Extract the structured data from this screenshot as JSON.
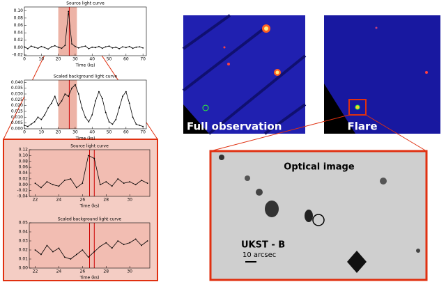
{
  "chart_data": [
    {
      "type": "line",
      "title": "Source light curve",
      "xlabel": "Time (ks)",
      "color": "#000000",
      "x": [
        0,
        2,
        4,
        6,
        8,
        10,
        12,
        14,
        16,
        18,
        20,
        22,
        24,
        26,
        28,
        30,
        32,
        34,
        36,
        38,
        40,
        42,
        44,
        46,
        48,
        50,
        52,
        54,
        56,
        58,
        60,
        62,
        64,
        66,
        68,
        70
      ],
      "values": [
        0.002,
        -0.003,
        0.004,
        0.001,
        -0.002,
        0.003,
        0.0,
        -0.004,
        0.002,
        0.005,
        0.001,
        -0.002,
        0.006,
        0.098,
        0.01,
        0.003,
        -0.001,
        0.002,
        0.004,
        -0.003,
        0.001,
        0.0,
        0.003,
        -0.002,
        0.002,
        0.004,
        -0.001,
        0.001,
        -0.003,
        0.002,
        0.0,
        0.003,
        -0.002,
        0.001,
        0.002,
        -0.001
      ],
      "xlim": [
        0,
        72
      ],
      "ylim": [
        -0.022,
        0.11
      ],
      "xticks": [
        0,
        10,
        20,
        30,
        40,
        50,
        60,
        70
      ],
      "yticks": [
        {
          "value": -0.02,
          "label": "-0.02"
        },
        {
          "value": 0,
          "label": "0.00"
        },
        {
          "value": 0.02,
          "label": "0.02"
        },
        {
          "value": 0.04,
          "label": "0.04"
        },
        {
          "value": 0.06,
          "label": "0.06"
        },
        {
          "value": 0.08,
          "label": "0.08"
        },
        {
          "value": 0.1,
          "label": "0.10"
        }
      ],
      "shade": [
        20,
        31
      ],
      "shade_color": "#e8a090",
      "marker_lines": [
        26.5
      ],
      "marker_color": "#cc0000"
    },
    {
      "type": "line",
      "title": "Scaled background light curve",
      "xlabel": "Time (ks)",
      "color": "#000000",
      "x": [
        0,
        2,
        4,
        6,
        8,
        10,
        12,
        14,
        16,
        18,
        20,
        22,
        24,
        26,
        28,
        30,
        32,
        34,
        36,
        38,
        40,
        42,
        44,
        46,
        48,
        50,
        52,
        54,
        56,
        58,
        60,
        62,
        64,
        66,
        68,
        70
      ],
      "values": [
        0.003,
        0.002,
        0.004,
        0.006,
        0.01,
        0.008,
        0.012,
        0.018,
        0.022,
        0.028,
        0.02,
        0.024,
        0.03,
        0.028,
        0.035,
        0.038,
        0.03,
        0.018,
        0.01,
        0.006,
        0.012,
        0.024,
        0.032,
        0.026,
        0.014,
        0.006,
        0.004,
        0.008,
        0.018,
        0.028,
        0.032,
        0.022,
        0.01,
        0.004,
        0.003,
        0.002
      ],
      "xlim": [
        0,
        72
      ],
      "ylim": [
        0,
        0.042
      ],
      "xticks": [
        0,
        10,
        20,
        30,
        40,
        50,
        60,
        70
      ],
      "yticks": [
        {
          "value": 0,
          "label": "0.000"
        },
        {
          "value": 0.005,
          "label": "0.005"
        },
        {
          "value": 0.01,
          "label": "0.010"
        },
        {
          "value": 0.015,
          "label": "0.015"
        },
        {
          "value": 0.02,
          "label": "0.020"
        },
        {
          "value": 0.025,
          "label": "0.025"
        },
        {
          "value": 0.03,
          "label": "0.030"
        },
        {
          "value": 0.035,
          "label": "0.035"
        },
        {
          "value": 0.04,
          "label": "0.040"
        }
      ],
      "shade": [
        20,
        31
      ],
      "shade_color": "#e8a090",
      "marker_lines": [
        26.5
      ],
      "marker_color": "#cc0000"
    },
    {
      "type": "line",
      "title": "Source light curve",
      "xlabel": "Time (ks)",
      "color": "#000000",
      "background": "#f2bdb2",
      "x": [
        22,
        22.5,
        23,
        23.5,
        24,
        24.5,
        25,
        25.5,
        26,
        26.5,
        27,
        27.5,
        28,
        28.5,
        29,
        29.5,
        30,
        30.5,
        31,
        31.5
      ],
      "values": [
        0.005,
        -0.01,
        0.01,
        0.0,
        -0.005,
        0.015,
        0.02,
        -0.01,
        0.005,
        0.1,
        0.09,
        0.0,
        0.01,
        -0.005,
        0.02,
        0.005,
        0.01,
        0.0,
        0.015,
        0.005
      ],
      "xlim": [
        21.5,
        31.7
      ],
      "ylim": [
        -0.04,
        0.12
      ],
      "xticks": [
        22,
        24,
        26,
        28,
        30
      ],
      "yticks": [
        {
          "value": -0.04,
          "label": "-0.04"
        },
        {
          "value": -0.02,
          "label": "-0.02"
        },
        {
          "value": 0,
          "label": "0.00"
        },
        {
          "value": 0.02,
          "label": "0.02"
        },
        {
          "value": 0.04,
          "label": "0.04"
        },
        {
          "value": 0.06,
          "label": "0.06"
        },
        {
          "value": 0.08,
          "label": "0.08"
        },
        {
          "value": 0.1,
          "label": "0.10"
        },
        {
          "value": 0.12,
          "label": "0.12"
        }
      ],
      "marker_lines": [
        26.6,
        27.0
      ],
      "marker_color": "#cc0000"
    },
    {
      "type": "line",
      "title": "Scaled background light curve",
      "xlabel": "Time (ks)",
      "color": "#000000",
      "background": "#f2bdb2",
      "x": [
        22,
        22.5,
        23,
        23.5,
        24,
        24.5,
        25,
        25.5,
        26,
        26.5,
        27,
        27.5,
        28,
        28.5,
        29,
        29.5,
        30,
        30.5,
        31,
        31.5
      ],
      "values": [
        0.02,
        0.015,
        0.025,
        0.018,
        0.022,
        0.012,
        0.01,
        0.015,
        0.02,
        0.012,
        0.018,
        0.024,
        0.028,
        0.022,
        0.03,
        0.026,
        0.028,
        0.032,
        0.025,
        0.03
      ],
      "xlim": [
        21.5,
        31.7
      ],
      "ylim": [
        0,
        0.05
      ],
      "xticks": [
        22,
        24,
        26,
        28,
        30
      ],
      "yticks": [
        {
          "value": 0,
          "label": "0.00"
        },
        {
          "value": 0.01,
          "label": "0.01"
        },
        {
          "value": 0.02,
          "label": "0.02"
        },
        {
          "value": 0.03,
          "label": "0.03"
        },
        {
          "value": 0.04,
          "label": "0.04"
        },
        {
          "value": 0.05,
          "label": "0.05"
        }
      ],
      "marker_lines": [
        26.6,
        27.0
      ],
      "marker_color": "#cc0000"
    }
  ],
  "images": {
    "full": "Full observation",
    "flare": "Flare",
    "optical": "Optical image",
    "band": "UKST - B",
    "scale": "10 arcsec"
  }
}
